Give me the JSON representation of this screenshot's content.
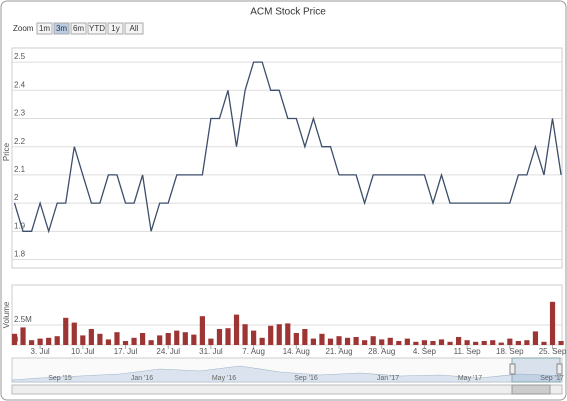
{
  "chart_data": {
    "type": "stock",
    "title": "ACM Stock Price",
    "range_selector": {
      "label": "Zoom",
      "buttons": [
        "1m",
        "3m",
        "6m",
        "YTD",
        "1y",
        "All"
      ],
      "selected": "3m"
    },
    "categories": [
      null,
      null,
      null,
      "3. Jul",
      null,
      null,
      null,
      null,
      "10. Jul",
      null,
      null,
      null,
      null,
      "17. Jul",
      null,
      null,
      null,
      null,
      "24. Jul",
      null,
      null,
      null,
      null,
      "31. Jul",
      null,
      null,
      null,
      null,
      "7. Aug",
      null,
      null,
      null,
      null,
      "14. Aug",
      null,
      null,
      null,
      null,
      "21. Aug",
      null,
      null,
      null,
      null,
      "28. Aug",
      null,
      null,
      null,
      null,
      "4. Sep",
      null,
      null,
      null,
      null,
      "11. Sep",
      null,
      null,
      null,
      null,
      "18. Sep",
      null,
      null,
      null,
      null,
      "25. Sep",
      null
    ],
    "ylabel": "Price",
    "y2label": "Volume",
    "series": [
      {
        "color": "#3d4e6b",
        "values": [
          2.0,
          1.9,
          1.9,
          2.0,
          1.9,
          2.0,
          2.0,
          2.2,
          2.1,
          2.0,
          2.0,
          2.1,
          2.1,
          2.0,
          2.0,
          2.1,
          1.9,
          2.0,
          2.0,
          2.1,
          2.1,
          2.1,
          2.1,
          2.3,
          2.3,
          2.4,
          2.2,
          2.4,
          2.5,
          2.5,
          2.4,
          2.4,
          2.3,
          2.3,
          2.2,
          2.3,
          2.2,
          2.2,
          2.1,
          2.1,
          2.1,
          2.0,
          2.1,
          2.1,
          2.1,
          2.1,
          2.1,
          2.1,
          2.1,
          2.0,
          2.1,
          2.0,
          2.0,
          2.0,
          2.0,
          2.0,
          2.0,
          2.0,
          2.0,
          2.1,
          2.1,
          2.2,
          2.1,
          2.3,
          2.1
        ]
      },
      {
        "color": "#9e3535",
        "axis": "y2",
        "values": [
          1400000,
          2200000,
          600000,
          800000,
          900000,
          1100000,
          3400000,
          2800000,
          1200000,
          2000000,
          1400000,
          700000,
          1600000,
          500000,
          900000,
          1500000,
          600000,
          1200000,
          1500000,
          1800000,
          1600000,
          1300000,
          3600000,
          800000,
          2000000,
          2100000,
          3800000,
          2600000,
          1800000,
          900000,
          2400000,
          2600000,
          2700000,
          1500000,
          2000000,
          800000,
          1400000,
          800000,
          1100000,
          900000,
          1000000,
          600000,
          1100000,
          700000,
          900000,
          500000,
          800000,
          400000,
          600000,
          500000,
          700000,
          400000,
          1000000,
          600000,
          400000,
          500000,
          600000,
          300000,
          800000,
          500000,
          600000,
          1700000,
          400000,
          5400000,
          500000
        ]
      }
    ],
    "ylim": [
      1.77,
      2.55
    ],
    "yticks": [
      1.8,
      1.9,
      2,
      2.1,
      2.2,
      2.3,
      2.4,
      2.5
    ],
    "y2lim": [
      0,
      7500000
    ],
    "y2ticks": [
      0,
      {
        "value": 2500000,
        "label": "2.5M"
      }
    ],
    "grid": true,
    "navigator": {
      "labels": [
        "Sep '15",
        "Jan '16",
        "May '16",
        "Sep '16",
        "Jan '17",
        "May '17",
        "Sep '17"
      ]
    }
  }
}
